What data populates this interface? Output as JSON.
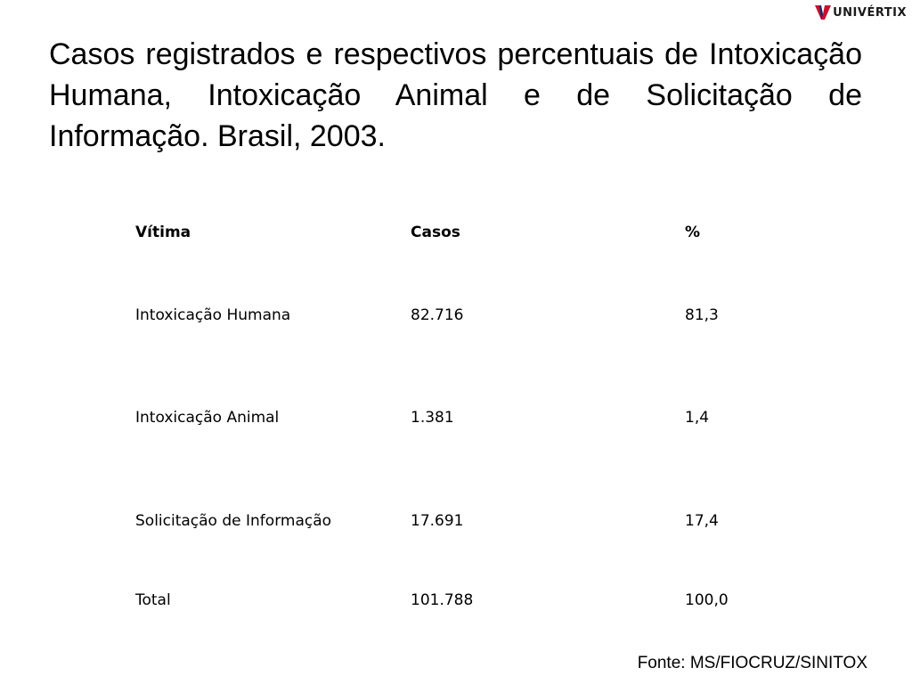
{
  "logo": {
    "text": "UNIVÉRTIX",
    "mark_color": "#c8102e",
    "mark_color_dark": "#1a2a6c"
  },
  "title": "Casos registrados e respectivos percentuais de Intoxicação Humana, Intoxicação Animal e de Solicitação de Informação. Brasil, 2003.",
  "table": {
    "headers": [
      "Vítima",
      "Casos",
      "%"
    ],
    "rows": [
      [
        "Intoxicação Humana",
        "82.716",
        "81,3"
      ],
      [
        "Intoxicação Animal",
        "1.381",
        "1,4"
      ],
      [
        "Solicitação de Informação",
        "17.691",
        "17,4"
      ],
      [
        "Total",
        "101.788",
        "100,0"
      ]
    ]
  },
  "source": "Fonte: MS/FIOCRUZ/SINITOX"
}
